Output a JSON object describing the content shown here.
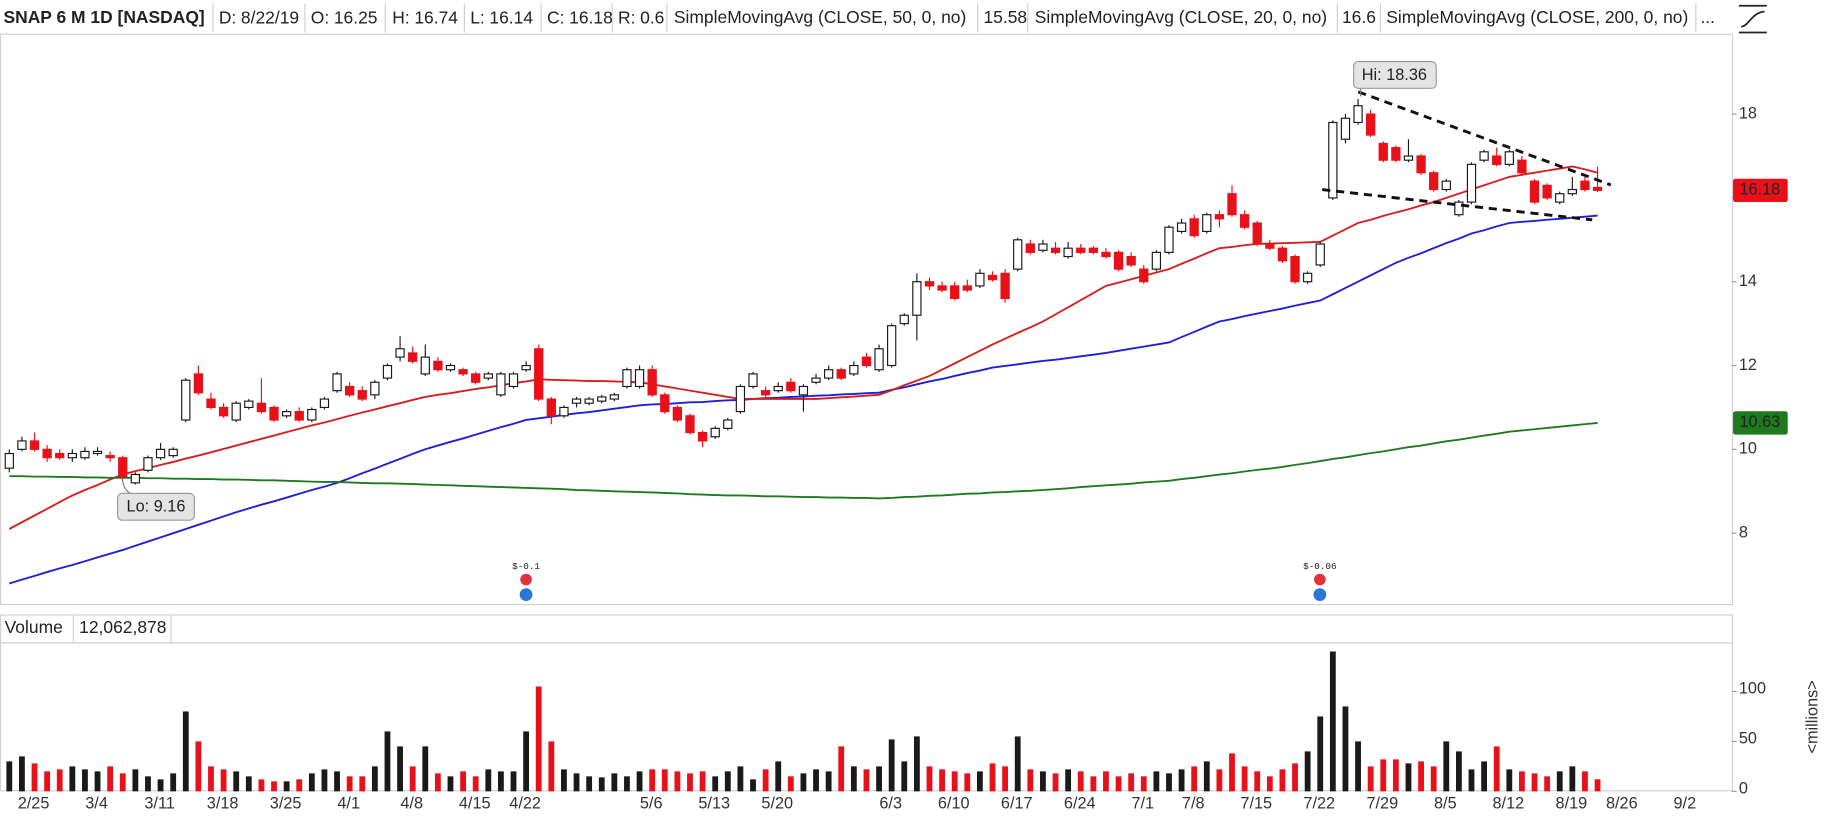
{
  "header": {
    "symbol": "SNAP 6 M 1D [NASDAQ]",
    "date_label": "D:",
    "date": "8/22/19",
    "open_label": "O:",
    "high_label": "H:",
    "low_label": "L:",
    "close_label": "C:",
    "range_label": "R:",
    "range": 0.6,
    "more": "..."
  },
  "annotations": {
    "high": "Hi: 18.36",
    "low": "Lo: 9.16"
  },
  "events": [
    "$-0.1",
    "$-0.06"
  ],
  "chart_data": {
    "type": "candlestick",
    "categories": [
      null,
      "2/25",
      null,
      null,
      null,
      null,
      "3/4",
      null,
      null,
      null,
      null,
      "3/11",
      null,
      null,
      null,
      null,
      "3/18",
      null,
      null,
      null,
      null,
      "3/25",
      null,
      null,
      null,
      null,
      "4/1",
      null,
      null,
      null,
      null,
      "4/8",
      null,
      null,
      null,
      null,
      "4/15",
      null,
      null,
      null,
      "4/22",
      null,
      null,
      null,
      null,
      null,
      null,
      null,
      null,
      null,
      "5/6",
      null,
      null,
      null,
      null,
      "5/13",
      null,
      null,
      null,
      null,
      "5/20",
      null,
      null,
      null,
      null,
      null,
      null,
      null,
      null,
      "6/3",
      null,
      null,
      null,
      null,
      "6/10",
      null,
      null,
      null,
      null,
      "6/17",
      null,
      null,
      null,
      null,
      "6/24",
      null,
      null,
      null,
      null,
      "7/1",
      null,
      null,
      null,
      "7/8",
      null,
      null,
      null,
      null,
      "7/15",
      null,
      null,
      null,
      null,
      "7/22",
      null,
      null,
      null,
      null,
      "7/29",
      null,
      null,
      null,
      null,
      "8/5",
      null,
      null,
      null,
      null,
      "8/12",
      null,
      null,
      null,
      null,
      "8/19",
      null,
      null,
      null,
      "8/26",
      null,
      null,
      null,
      null,
      "9/2"
    ],
    "open": [
      9.55,
      10.0,
      10.2,
      10.0,
      9.9,
      9.8,
      9.8,
      9.9,
      9.85,
      9.8,
      9.2,
      9.5,
      9.8,
      9.85,
      10.7,
      11.8,
      11.2,
      11.0,
      10.7,
      11.0,
      11.1,
      11.0,
      10.8,
      10.9,
      10.7,
      11.0,
      11.4,
      11.5,
      11.4,
      11.3,
      11.7,
      12.2,
      12.3,
      11.8,
      12.1,
      11.9,
      11.9,
      11.8,
      11.7,
      11.3,
      11.5,
      11.9,
      12.4,
      11.2,
      10.8,
      11.1,
      11.1,
      11.15,
      11.2,
      11.5,
      11.5,
      11.9,
      11.3,
      11.0,
      10.8,
      10.4,
      10.3,
      10.5,
      10.9,
      11.5,
      11.4,
      11.4,
      11.6,
      11.3,
      11.6,
      11.7,
      11.9,
      11.8,
      12.2,
      11.9,
      12.0,
      13.0,
      13.2,
      14.0,
      13.9,
      13.9,
      13.9,
      13.9,
      14.15,
      14.2,
      14.3,
      14.9,
      14.75,
      14.8,
      14.6,
      14.8,
      14.8,
      14.7,
      14.7,
      14.6,
      14.3,
      14.3,
      14.7,
      15.2,
      15.5,
      15.2,
      15.6,
      16.1,
      15.6,
      15.4,
      14.9,
      14.8,
      14.6,
      14.0,
      14.4,
      16.0,
      17.4,
      17.8,
      18.0,
      17.3,
      17.2,
      16.9,
      17.0,
      16.6,
      16.2,
      15.6,
      15.9,
      16.9,
      17.0,
      16.8,
      16.9,
      16.4,
      16.3,
      15.9,
      16.1,
      16.4,
      16.25,
      null,
      null,
      null,
      null,
      null,
      null
    ],
    "high": [
      10.0,
      10.3,
      10.4,
      10.1,
      10.0,
      10.0,
      10.05,
      10.05,
      9.95,
      9.85,
      9.45,
      9.85,
      10.15,
      10.05,
      11.7,
      12.0,
      11.35,
      11.1,
      11.15,
      11.2,
      11.7,
      11.05,
      10.95,
      11.0,
      11.0,
      11.25,
      11.85,
      11.6,
      11.5,
      11.65,
      12.05,
      12.7,
      12.45,
      12.5,
      12.2,
      12.05,
      11.95,
      11.85,
      11.85,
      11.85,
      11.85,
      12.1,
      12.5,
      11.25,
      11.05,
      11.25,
      11.25,
      11.3,
      11.35,
      11.95,
      12.0,
      12.0,
      11.35,
      11.05,
      10.85,
      10.45,
      10.55,
      10.75,
      11.55,
      11.85,
      11.5,
      11.6,
      11.7,
      11.55,
      11.8,
      12.0,
      11.95,
      12.1,
      12.3,
      12.5,
      13.0,
      13.25,
      14.2,
      14.1,
      14.0,
      14.0,
      14.05,
      14.3,
      14.25,
      14.3,
      15.05,
      15.0,
      15.0,
      14.95,
      14.95,
      14.9,
      14.85,
      14.8,
      14.75,
      14.7,
      14.4,
      14.75,
      15.35,
      15.5,
      15.6,
      15.65,
      15.7,
      16.3,
      15.7,
      15.45,
      15.0,
      14.85,
      14.65,
      14.25,
      14.95,
      17.85,
      18.0,
      18.36,
      18.1,
      17.35,
      17.25,
      17.4,
      17.05,
      16.65,
      16.45,
      15.95,
      16.85,
      17.15,
      17.2,
      17.15,
      17.0,
      16.45,
      16.35,
      16.15,
      16.5,
      16.5,
      16.74,
      null,
      null,
      null,
      null,
      null,
      null
    ],
    "low": [
      9.45,
      9.95,
      9.95,
      9.7,
      9.75,
      9.7,
      9.75,
      9.85,
      9.7,
      9.3,
      9.16,
      9.45,
      9.75,
      9.8,
      10.65,
      11.3,
      10.95,
      10.75,
      10.65,
      10.95,
      10.85,
      10.65,
      10.75,
      10.65,
      10.65,
      10.95,
      11.35,
      11.25,
      11.15,
      11.2,
      11.65,
      12.1,
      12.05,
      11.75,
      11.85,
      11.85,
      11.75,
      11.55,
      11.65,
      11.25,
      11.45,
      11.85,
      11.15,
      10.6,
      10.75,
      11.0,
      11.05,
      11.1,
      11.15,
      11.45,
      11.45,
      11.25,
      10.85,
      10.65,
      10.35,
      10.05,
      10.25,
      10.45,
      10.85,
      11.45,
      11.2,
      11.35,
      11.35,
      10.9,
      11.55,
      11.65,
      11.65,
      11.75,
      11.95,
      11.85,
      11.95,
      12.95,
      12.6,
      13.8,
      13.75,
      13.55,
      13.75,
      13.85,
      14.0,
      13.5,
      14.25,
      14.65,
      14.7,
      14.65,
      14.55,
      14.65,
      14.65,
      14.55,
      14.25,
      14.35,
      13.95,
      14.25,
      14.65,
      15.15,
      15.05,
      15.15,
      15.3,
      15.55,
      15.25,
      14.85,
      14.75,
      14.45,
      13.95,
      13.95,
      14.35,
      15.95,
      17.3,
      17.75,
      17.45,
      16.85,
      16.85,
      16.85,
      16.55,
      16.15,
      16.15,
      15.55,
      15.85,
      16.85,
      16.75,
      16.75,
      16.55,
      15.85,
      15.95,
      15.85,
      16.05,
      16.15,
      16.14,
      null,
      null,
      null,
      null,
      null,
      null
    ],
    "close": [
      9.9,
      10.2,
      10.0,
      9.8,
      9.8,
      9.9,
      9.95,
      9.95,
      9.8,
      9.35,
      9.4,
      9.8,
      10.0,
      10.0,
      11.65,
      11.35,
      11.0,
      10.8,
      11.1,
      11.15,
      10.9,
      10.7,
      10.9,
      10.7,
      10.95,
      11.2,
      11.8,
      11.3,
      11.2,
      11.6,
      12.0,
      12.4,
      12.1,
      12.2,
      11.9,
      12.0,
      11.8,
      11.6,
      11.8,
      11.8,
      11.8,
      12.0,
      11.2,
      10.8,
      11.0,
      11.2,
      11.2,
      11.25,
      11.3,
      11.9,
      11.9,
      11.3,
      10.9,
      10.7,
      10.4,
      10.2,
      10.5,
      10.7,
      11.5,
      11.8,
      11.3,
      11.5,
      11.4,
      11.5,
      11.7,
      11.9,
      11.7,
      12.0,
      12.0,
      12.4,
      12.95,
      13.2,
      14.0,
      13.9,
      13.8,
      13.6,
      13.8,
      14.2,
      14.05,
      13.6,
      15.0,
      14.7,
      14.9,
      14.7,
      14.8,
      14.7,
      14.7,
      14.6,
      14.3,
      14.4,
      14.0,
      14.7,
      15.3,
      15.4,
      15.1,
      15.6,
      15.5,
      15.6,
      15.3,
      14.9,
      14.8,
      14.5,
      14.0,
      14.2,
      14.9,
      17.8,
      17.9,
      18.2,
      17.5,
      16.9,
      16.9,
      17.0,
      16.6,
      16.2,
      16.4,
      15.9,
      16.8,
      17.1,
      16.8,
      17.1,
      16.6,
      15.9,
      16.0,
      16.1,
      16.2,
      16.2,
      16.18,
      null,
      null,
      null,
      null,
      null,
      null
    ],
    "up_color": "#ffffff",
    "edge_color": "#1a1a1a",
    "down_color": "#e8111a",
    "ylim": [
      6.31,
      19.92
    ],
    "yticks": [
      8,
      10,
      12,
      14,
      16,
      18
    ],
    "overlays": [
      {
        "name": "SimpleMovingAvg (CLOSE, 50, 0, no)",
        "color": "#1f1fd6",
        "values": [
          6.8,
          6.89,
          6.98,
          7.07,
          7.16,
          7.24,
          7.33,
          7.42,
          7.51,
          7.6,
          7.7,
          7.8,
          7.9,
          8.0,
          8.1,
          8.2,
          8.3,
          8.4,
          8.5,
          8.59,
          8.68,
          8.76,
          8.85,
          8.94,
          9.03,
          9.11,
          9.2,
          9.31,
          9.43,
          9.54,
          9.66,
          9.77,
          9.89,
          10.0,
          10.09,
          10.18,
          10.26,
          10.35,
          10.44,
          10.53,
          10.61,
          10.7,
          10.74,
          10.78,
          10.82,
          10.86,
          10.89,
          10.93,
          10.97,
          11.01,
          11.05,
          11.07,
          11.08,
          11.1,
          11.12,
          11.13,
          11.15,
          11.17,
          11.18,
          11.2,
          11.22,
          11.23,
          11.25,
          11.26,
          11.28,
          11.29,
          11.31,
          11.32,
          11.34,
          11.35,
          11.42,
          11.48,
          11.55,
          11.62,
          11.68,
          11.75,
          11.82,
          11.88,
          11.95,
          11.99,
          12.03,
          12.07,
          12.11,
          12.14,
          12.18,
          12.22,
          12.26,
          12.3,
          12.35,
          12.4,
          12.45,
          12.5,
          12.55,
          12.68,
          12.8,
          12.93,
          13.05,
          13.11,
          13.18,
          13.24,
          13.3,
          13.36,
          13.43,
          13.49,
          13.55,
          13.7,
          13.85,
          14.0,
          14.15,
          14.3,
          14.45,
          14.57,
          14.68,
          14.8,
          14.92,
          15.03,
          15.15,
          15.23,
          15.32,
          15.4,
          15.43,
          15.45,
          15.48,
          15.5,
          15.53,
          15.55,
          15.58,
          null,
          null,
          null,
          null,
          null,
          null
        ]
      },
      {
        "name": "SimpleMovingAvg (CLOSE, 20, 0, no)",
        "color": "#d41f1f",
        "values": [
          8.1,
          8.26,
          8.42,
          8.58,
          8.74,
          8.9,
          9.03,
          9.15,
          9.28,
          9.4,
          9.48,
          9.55,
          9.63,
          9.7,
          9.78,
          9.85,
          9.93,
          10.01,
          10.09,
          10.17,
          10.25,
          10.33,
          10.41,
          10.49,
          10.57,
          10.64,
          10.72,
          10.8,
          10.88,
          10.95,
          11.03,
          11.1,
          11.18,
          11.25,
          11.3,
          11.34,
          11.39,
          11.44,
          11.48,
          11.53,
          11.58,
          11.62,
          11.67,
          11.66,
          11.65,
          11.64,
          11.63,
          11.63,
          11.62,
          11.61,
          11.6,
          11.55,
          11.5,
          11.45,
          11.4,
          11.35,
          11.3,
          11.25,
          11.2,
          11.2,
          11.2,
          11.2,
          11.2,
          11.2,
          11.2,
          11.22,
          11.24,
          11.26,
          11.28,
          11.3,
          11.41,
          11.53,
          11.64,
          11.75,
          11.9,
          12.05,
          12.2,
          12.35,
          12.5,
          12.64,
          12.78,
          12.91,
          13.05,
          13.22,
          13.39,
          13.56,
          13.73,
          13.9,
          13.98,
          14.06,
          14.14,
          14.22,
          14.3,
          14.43,
          14.55,
          14.68,
          14.8,
          14.83,
          14.87,
          14.9,
          14.91,
          14.92,
          14.93,
          14.94,
          14.95,
          15.1,
          15.25,
          15.4,
          15.48,
          15.57,
          15.65,
          15.73,
          15.82,
          15.9,
          16.0,
          16.1,
          16.2,
          16.3,
          16.4,
          16.5,
          16.55,
          16.6,
          16.65,
          16.7,
          16.75,
          16.68,
          16.6,
          null,
          null,
          null,
          null,
          null,
          null
        ]
      },
      {
        "name": "SimpleMovingAvg (CLOSE, 200, 0, no)",
        "color": "#1f7a1f",
        "values": [
          9.36,
          9.36,
          9.35,
          9.35,
          9.34,
          9.34,
          9.33,
          9.33,
          9.32,
          9.32,
          9.32,
          9.31,
          9.31,
          9.3,
          9.3,
          9.29,
          9.29,
          9.28,
          9.28,
          9.27,
          9.26,
          9.26,
          9.25,
          9.24,
          9.23,
          9.22,
          9.22,
          9.21,
          9.2,
          9.19,
          9.19,
          9.18,
          9.17,
          9.16,
          9.15,
          9.14,
          9.13,
          9.12,
          9.11,
          9.1,
          9.09,
          9.08,
          9.07,
          9.06,
          9.05,
          9.03,
          9.02,
          9.01,
          9.0,
          8.99,
          8.98,
          8.97,
          8.96,
          8.95,
          8.93,
          8.92,
          8.91,
          8.9,
          8.9,
          8.89,
          8.88,
          8.88,
          8.87,
          8.86,
          8.86,
          8.85,
          8.85,
          8.84,
          8.84,
          8.83,
          8.84,
          8.86,
          8.87,
          8.89,
          8.9,
          8.92,
          8.94,
          8.95,
          8.97,
          8.98,
          9.0,
          9.01,
          9.03,
          9.05,
          9.07,
          9.1,
          9.12,
          9.14,
          9.16,
          9.18,
          9.21,
          9.23,
          9.25,
          9.29,
          9.32,
          9.36,
          9.4,
          9.43,
          9.47,
          9.51,
          9.54,
          9.58,
          9.63,
          9.67,
          9.72,
          9.77,
          9.81,
          9.86,
          9.91,
          9.95,
          10.0,
          10.05,
          10.09,
          10.14,
          10.19,
          10.23,
          10.28,
          10.33,
          10.37,
          10.42,
          10.45,
          10.48,
          10.51,
          10.54,
          10.57,
          10.6,
          10.63,
          null,
          null,
          null,
          null,
          null,
          null
        ]
      }
    ],
    "volume": {
      "label": "Volume",
      "current": "12,062,878",
      "unit_label": "<millions>",
      "ylim": [
        0,
        148
      ],
      "yticks": [
        0,
        50,
        100
      ],
      "values": [
        30,
        35,
        28,
        20,
        22,
        25,
        22,
        20,
        25,
        18,
        22,
        15,
        12,
        18,
        80,
        50,
        25,
        22,
        20,
        15,
        12,
        10,
        10,
        12,
        18,
        22,
        20,
        15,
        15,
        25,
        60,
        45,
        25,
        45,
        18,
        15,
        20,
        15,
        22,
        20,
        20,
        60,
        105,
        50,
        22,
        18,
        15,
        14,
        18,
        15,
        20,
        22,
        22,
        20,
        18,
        20,
        15,
        20,
        25,
        12,
        22,
        30,
        15,
        18,
        22,
        20,
        45,
        25,
        22,
        25,
        52,
        30,
        55,
        25,
        22,
        20,
        18,
        20,
        28,
        25,
        55,
        22,
        20,
        18,
        22,
        20,
        15,
        20,
        15,
        18,
        15,
        20,
        18,
        22,
        25,
        30,
        22,
        38,
        25,
        20,
        15,
        22,
        28,
        40,
        75,
        140,
        85,
        50,
        25,
        32,
        32,
        28,
        30,
        25,
        50,
        40,
        22,
        30,
        45,
        22,
        20,
        18,
        15,
        20,
        25,
        20,
        12.06,
        null,
        null,
        null,
        null,
        null,
        null
      ]
    }
  }
}
